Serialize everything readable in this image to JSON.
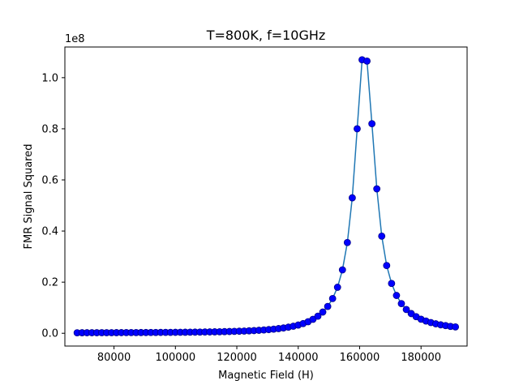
{
  "chart_data": {
    "type": "line",
    "title": "T=800K, f=10GHz",
    "xlabel": "Magnetic Field (H)",
    "ylabel": "FMR Signal Squared",
    "y_offset_text": "1e8",
    "xlim": [
      64000,
      195000
    ],
    "ylim": [
      -5000000,
      112000000
    ],
    "xticks": [
      80000,
      100000,
      120000,
      140000,
      160000,
      180000
    ],
    "xtick_labels": [
      "80000",
      "100000",
      "120000",
      "140000",
      "160000",
      "180000"
    ],
    "yticks": [
      0,
      20000000,
      40000000,
      60000000,
      80000000,
      100000000
    ],
    "ytick_labels": [
      "0.0",
      "0.2",
      "0.4",
      "0.6",
      "0.8",
      "1.0"
    ],
    "grid": false,
    "line_color": "#1f77b4",
    "marker_color": "#0000ff",
    "marker_edge_color": "#00008b",
    "series": [
      {
        "x": [
          68000,
          69600,
          71200,
          72800,
          74400,
          76000,
          77600,
          79200,
          80800,
          82400,
          84000,
          85600,
          87200,
          88800,
          90400,
          92000,
          93600,
          95200,
          96800,
          98400,
          100000,
          101600,
          103200,
          104800,
          106400,
          108000,
          109600,
          111200,
          112800,
          114400,
          116000,
          117600,
          119200,
          120800,
          122400,
          124000,
          125600,
          127200,
          128800,
          130400,
          132000,
          133600,
          135200,
          136800,
          138400,
          140000,
          141600,
          143200,
          144800,
          146400,
          148000,
          149600,
          151200,
          152800,
          154400,
          156000,
          157600,
          159200,
          160800,
          162400,
          164000,
          165600,
          167200,
          168800,
          170400,
          172000,
          173600,
          175200,
          176800,
          178400,
          180000,
          181600,
          183200,
          184800,
          186400,
          188000,
          189600,
          191200
        ],
        "y": [
          200000,
          205000,
          210000,
          215000,
          220000,
          226000,
          232000,
          238000,
          245000,
          252000,
          260000,
          268000,
          276000,
          285000,
          295000,
          305000,
          316000,
          328000,
          341000,
          355000,
          370000,
          386000,
          404000,
          424000,
          446000,
          470000,
          497000,
          527000,
          560000,
          598000,
          640000,
          688000,
          742000,
          804000,
          875000,
          957000,
          1050000,
          1160000,
          1290000,
          1440000,
          1620000,
          1830000,
          2080000,
          2390000,
          2760000,
          3220000,
          3800000,
          4520000,
          5460000,
          6680000,
          8300000,
          10500000,
          13600000,
          18000000,
          24800000,
          35500000,
          53000000,
          80000000,
          107000000,
          106500000,
          82000000,
          56500000,
          38000000,
          26500000,
          19500000,
          14800000,
          11600000,
          9300000,
          7700000,
          6500000,
          5500000,
          4800000,
          4200000,
          3700000,
          3300000,
          3000000,
          2700000,
          2500000
        ]
      }
    ]
  }
}
